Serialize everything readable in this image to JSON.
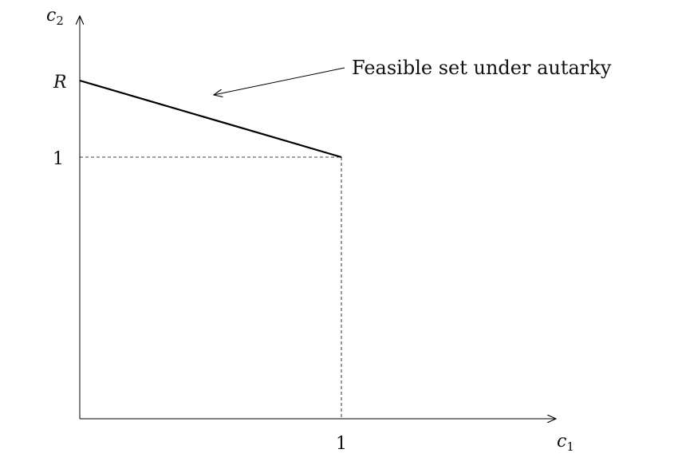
{
  "diagram": {
    "y_axis_label": "c",
    "y_axis_subscript": "2",
    "x_axis_label": "c",
    "x_axis_subscript": "1",
    "y_tick_R": "R",
    "y_tick_1": "1",
    "x_tick_1": "1",
    "annotation": "Feasible set under autarky",
    "colors": {
      "line": "#000000",
      "axis": "#000000",
      "guide": "#000000"
    }
  }
}
